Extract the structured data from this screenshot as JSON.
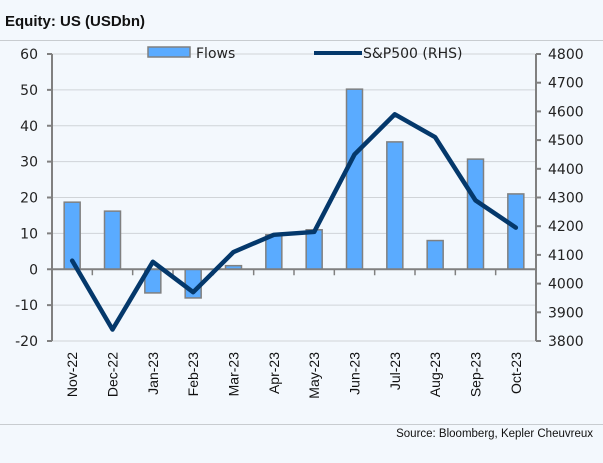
{
  "title": "Equity: US (USDbn)",
  "source": "Source: Bloomberg, Kepler Cheuvreux",
  "colors": {
    "bar_fill": "#5aabff",
    "bar_stroke": "#808080",
    "line": "#04386b",
    "grid": "#d0d4d8",
    "axis": "#808080"
  },
  "chart_data": {
    "type": "bar+line",
    "title": "Equity: US (USDbn)",
    "categories": [
      "Nov-22",
      "Dec-22",
      "Jan-23",
      "Feb-23",
      "Mar-23",
      "Apr-23",
      "May-23",
      "Jun-23",
      "Jul-23",
      "Aug-23",
      "Sep-23",
      "Oct-23"
    ],
    "series": [
      {
        "name": "Flows",
        "type": "bar",
        "axis": "left",
        "values": [
          18.7,
          16.2,
          -6.6,
          -8.0,
          1.0,
          9.6,
          11.0,
          50.2,
          35.5,
          8.0,
          30.7,
          21.0
        ]
      },
      {
        "name": "S&P500 (RHS)",
        "type": "line",
        "axis": "right",
        "values": [
          4080,
          3840,
          4076,
          3970,
          4110,
          4170,
          4180,
          4450,
          4590,
          4510,
          4290,
          4195
        ]
      }
    ],
    "y_left": {
      "min": -20,
      "max": 60,
      "ticks": [
        "60",
        "50",
        "40",
        "30",
        "20",
        "10",
        "0",
        "-10",
        "-20"
      ]
    },
    "y_right": {
      "min": 3800,
      "max": 4800,
      "ticks": [
        "4800",
        "4700",
        "4600",
        "4500",
        "4400",
        "4300",
        "4200",
        "4100",
        "4000",
        "3900",
        "3800"
      ]
    },
    "grid": true,
    "legend": "top-center"
  }
}
